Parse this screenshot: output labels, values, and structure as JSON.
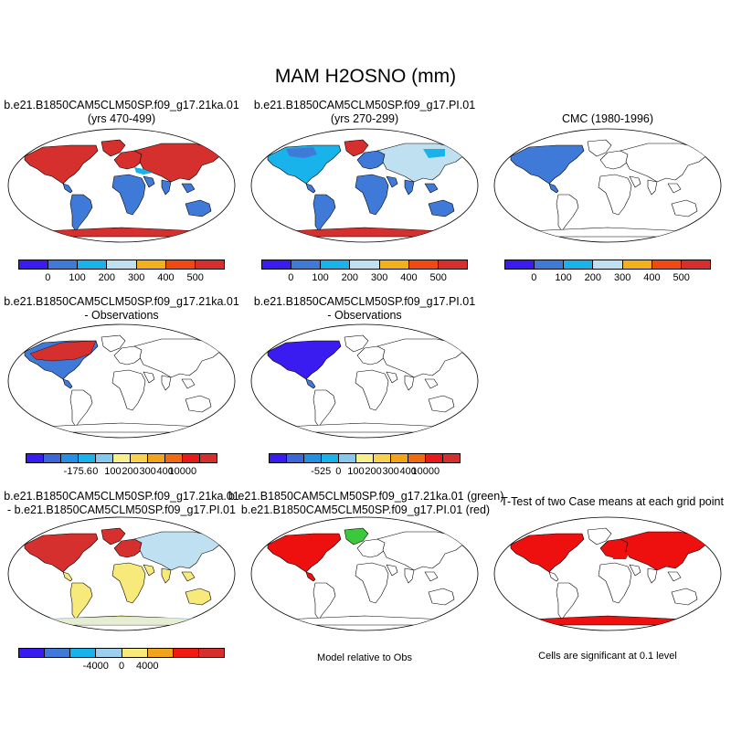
{
  "main_title": "MAM H2OSNO (mm)",
  "panels": [
    {
      "title": [
        "b.e21.B1850CAM5CLM50SP.f09_g17.21ka.01",
        "(yrs 470-499)"
      ]
    },
    {
      "title": [
        "b.e21.B1850CAM5CLM50SP.f09_g17.PI.01",
        "(yrs 270-299)"
      ]
    },
    {
      "title": [
        "CMC (1980-1996)"
      ]
    },
    {
      "title": [
        "b.e21.B1850CAM5CLM50SP.f09_g17.21ka.01",
        "- Observations"
      ]
    },
    {
      "title": [
        "b.e21.B1850CAM5CLM50SP.f09_g17.PI.01",
        "- Observations"
      ]
    },
    {
      "title": [
        "b.e21.B1850CAM5CLM50SP.f09_g17.21ka.01",
        "- b.e21.B1850CAM5CLM50SP.f09_g17.PI.01"
      ]
    },
    {
      "title": [
        "b.e21.B1850CAM5CLM50SP.f09_g17.21ka.01 (green)",
        "b.e21.B1850CAM5CLM50SP.f09_g17.PI.01 (red)"
      ]
    },
    {
      "title": [
        "T-Test of two Case means at each grid point"
      ]
    }
  ],
  "colorbars": {
    "abs": {
      "colors": [
        "#3a1cf0",
        "#3f7ad8",
        "#18b3ea",
        "#bfe0f0",
        "#f2b11c",
        "#f04a12",
        "#d6302e"
      ],
      "labels": [
        "0",
        "100",
        "200",
        "300",
        "400",
        "500"
      ]
    },
    "diff1": {
      "colors": [
        "#3a1cf0",
        "#3f66d6",
        "#2590e2",
        "#18b3ea",
        "#86c8ec",
        "#f8f08a",
        "#f8d24e",
        "#f2a31c",
        "#f06a12",
        "#e81a1a",
        "#d6302e"
      ],
      "labels": [
        "-175.6",
        "0",
        "100",
        "200",
        "300",
        "400",
        "10000"
      ]
    },
    "diff2": {
      "colors": [
        "#3a1cf0",
        "#3f66d6",
        "#2590e2",
        "#18b3ea",
        "#86c8ec",
        "#f8f08a",
        "#f8d24e",
        "#f2a31c",
        "#f06a12",
        "#e81a1a",
        "#d6302e"
      ],
      "labels": [
        "-525",
        "0",
        "100",
        "200",
        "300",
        "400",
        "10000"
      ]
    },
    "diff3": {
      "colors": [
        "#3a1cf0",
        "#3f7ad8",
        "#18b3ea",
        "#9ccfee",
        "#f8ea7a",
        "#f2a31c",
        "#f01a12",
        "#d6302e"
      ],
      "labels": [
        "-4000",
        "0",
        "4000"
      ]
    }
  },
  "notes": {
    "model_relative": "Model relative to Obs",
    "significance": "Cells are significant at 0.1 level"
  },
  "map_colors": {
    "land_blue": "#3f7ad8",
    "snow_red": "#d6302e",
    "light_blue": "#bfe0f0",
    "cyan": "#18b3ea",
    "yellow": "#f8ea7a",
    "bright_red": "#ee0f0f",
    "green": "#3cc83c",
    "dark_blue": "#3a1cf0"
  }
}
